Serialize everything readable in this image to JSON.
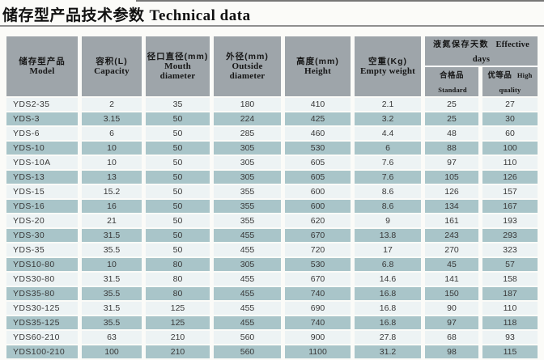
{
  "page": {
    "title_zh": "储存型产品技术参数",
    "title_en": "Technical data"
  },
  "table": {
    "columns": [
      {
        "zh": "储存型产品",
        "en": "Model"
      },
      {
        "zh": "容积(L)",
        "en": "Capacity"
      },
      {
        "zh": "径口直径(mm)",
        "en": "Mouth diameter"
      },
      {
        "zh": "外径(mm)",
        "en": "Outside diameter"
      },
      {
        "zh": "高度(mm)",
        "en": "Height"
      },
      {
        "zh": "空重(Kg)",
        "en": "Empty weight"
      }
    ],
    "group": {
      "zh": "液氮保存天数",
      "en": "Effective days",
      "sub": [
        {
          "zh": "合格品",
          "en": "Standard"
        },
        {
          "zh": "优等品",
          "en": "High quality"
        }
      ]
    },
    "rows": [
      [
        "YDS2-35",
        "2",
        "35",
        "180",
        "410",
        "2.1",
        "25",
        "27"
      ],
      [
        "YDS-3",
        "3.15",
        "50",
        "224",
        "425",
        "3.2",
        "25",
        "30"
      ],
      [
        "YDS-6",
        "6",
        "50",
        "285",
        "460",
        "4.4",
        "48",
        "60"
      ],
      [
        "YDS-10",
        "10",
        "50",
        "305",
        "530",
        "6",
        "88",
        "100"
      ],
      [
        "YDS-10A",
        "10",
        "50",
        "305",
        "605",
        "7.6",
        "97",
        "110"
      ],
      [
        "YDS-13",
        "13",
        "50",
        "305",
        "605",
        "7.6",
        "105",
        "126"
      ],
      [
        "YDS-15",
        "15.2",
        "50",
        "355",
        "600",
        "8.6",
        "126",
        "157"
      ],
      [
        "YDS-16",
        "16",
        "50",
        "355",
        "600",
        "8.6",
        "134",
        "167"
      ],
      [
        "YDS-20",
        "21",
        "50",
        "355",
        "620",
        "9",
        "161",
        "193"
      ],
      [
        "YDS-30",
        "31.5",
        "50",
        "455",
        "670",
        "13.8",
        "243",
        "293"
      ],
      [
        "YDS-35",
        "35.5",
        "50",
        "455",
        "720",
        "17",
        "270",
        "323"
      ],
      [
        "YDS10-80",
        "10",
        "80",
        "305",
        "530",
        "6.8",
        "45",
        "57"
      ],
      [
        "YDS30-80",
        "31.5",
        "80",
        "455",
        "670",
        "14.6",
        "141",
        "158"
      ],
      [
        "YDS35-80",
        "35.5",
        "80",
        "455",
        "740",
        "16.8",
        "150",
        "187"
      ],
      [
        "YDS30-125",
        "31.5",
        "125",
        "455",
        "690",
        "16.8",
        "90",
        "110"
      ],
      [
        "YDS35-125",
        "35.5",
        "125",
        "455",
        "740",
        "16.8",
        "97",
        "118"
      ],
      [
        "YDS60-210",
        "63",
        "210",
        "560",
        "900",
        "27.8",
        "68",
        "93"
      ],
      [
        "YDS100-210",
        "100",
        "210",
        "560",
        "1100",
        "31.2",
        "98",
        "115"
      ]
    ]
  },
  "colors": {
    "header_bg": "#9ea5aa",
    "row_light": "#edf3f4",
    "row_dark": "#a9c5c9",
    "page_bg": "#fbfbf8",
    "header_text": "#161616",
    "body_text": "#383838",
    "rule": "#8f8f8f",
    "top_line": "#4b4b4b"
  }
}
